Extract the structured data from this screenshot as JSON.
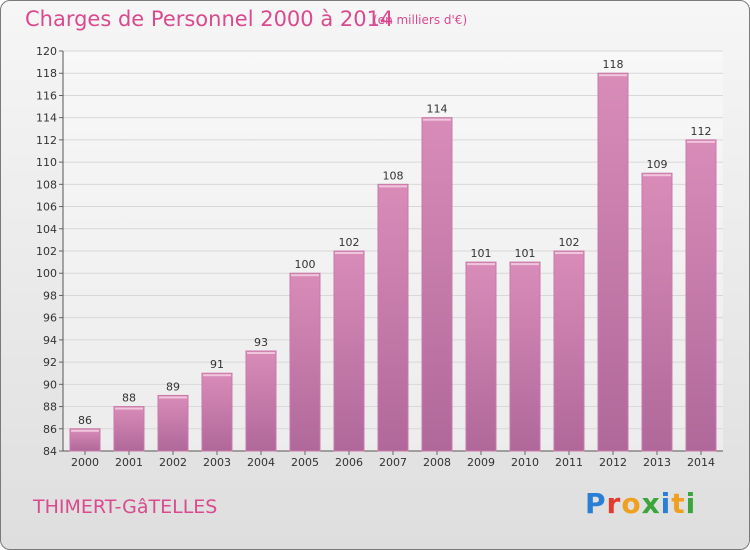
{
  "header": {
    "title": "Charges de Personnel 2000 à 2014",
    "subtitle": "(en milliers d'€)"
  },
  "footer": {
    "place": "THIMERT-GâTELLES",
    "logo": "Proxiti",
    "logo_colors": [
      "#2a7fd4",
      "#e23b2e",
      "#f0a020",
      "#3aa53a",
      "#2a7fd4",
      "#f0a020",
      "#3aa53a"
    ]
  },
  "chart_data": {
    "type": "bar",
    "title": "Charges de Personnel 2000 à 2014",
    "subtitle": "(en milliers d'€)",
    "categories": [
      "2000",
      "2001",
      "2002",
      "2003",
      "2004",
      "2005",
      "2006",
      "2007",
      "2008",
      "2009",
      "2010",
      "2011",
      "2012",
      "2013",
      "2014"
    ],
    "values": [
      86,
      88,
      89,
      91,
      93,
      100,
      102,
      108,
      114,
      101,
      101,
      102,
      118,
      109,
      112
    ],
    "ylim": [
      84,
      120
    ],
    "yticks": [
      84,
      86,
      88,
      90,
      92,
      94,
      96,
      98,
      100,
      102,
      104,
      106,
      108,
      110,
      112,
      114,
      116,
      118,
      120
    ],
    "grid": true,
    "bar_color": "#d98cb8",
    "bar_color_dark": "#b0689a"
  }
}
